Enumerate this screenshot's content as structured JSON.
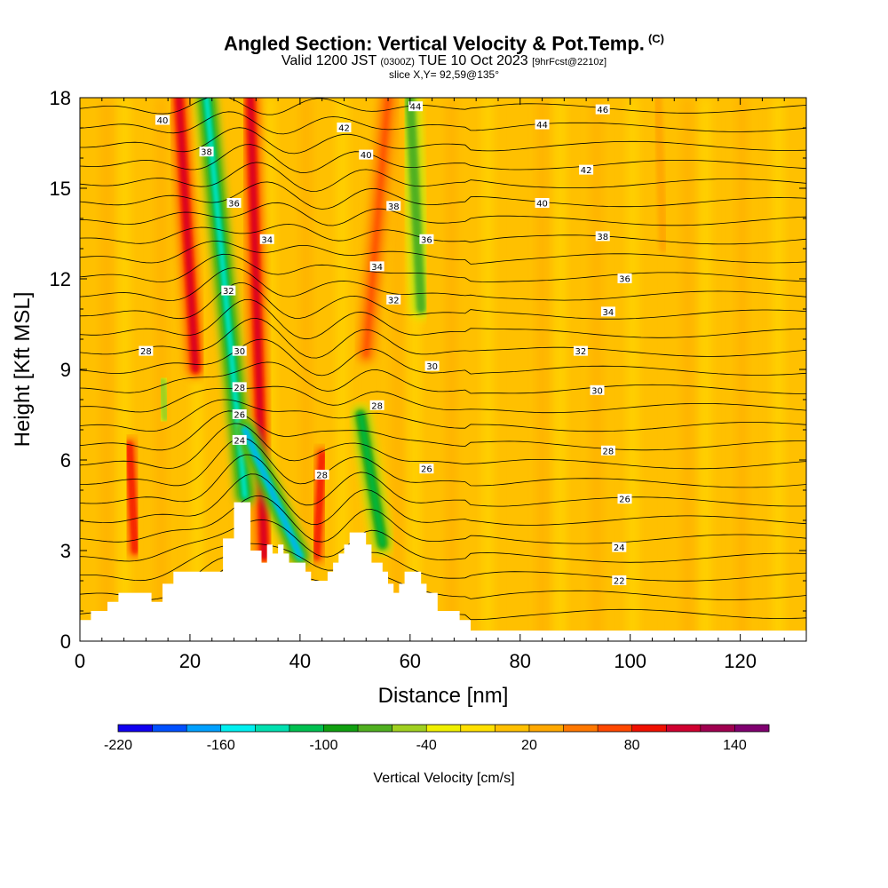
{
  "title": {
    "main": "Angled Section: Vertical Velocity & Pot.Temp.",
    "main_units": "(C)",
    "valid_prefix": "Valid 1200 JST",
    "valid_utc": "(0300Z)",
    "valid_date": "TUE 10 Oct 2023",
    "forecast": "[9hrFcst@2210z]",
    "slice": "slice X,Y= 92,59@135°"
  },
  "chart_data": {
    "type": "heatmap",
    "xlabel": "Distance [nm]",
    "ylabel": "Height [Kft MSL]",
    "xlim": [
      0,
      132
    ],
    "ylim": [
      0,
      18
    ],
    "x_ticks": [
      0,
      20,
      40,
      60,
      80,
      100,
      120
    ],
    "y_ticks": [
      0,
      3,
      6,
      9,
      12,
      15,
      18
    ],
    "colorbar": {
      "label": "Vertical Velocity [cm/s]",
      "ticks": [
        -220,
        -160,
        -100,
        -40,
        20,
        80,
        140
      ],
      "min": -220,
      "max": 160,
      "step": 20,
      "colors": [
        "#1000f0",
        "#0050ff",
        "#00a0ff",
        "#00f0f0",
        "#00e0b0",
        "#00c050",
        "#10a010",
        "#50b020",
        "#a0d020",
        "#f0f000",
        "#ffe000",
        "#ffc000",
        "#ffa800",
        "#ff7800",
        "#ff4800",
        "#f01000",
        "#d00030",
        "#a00050",
        "#800070"
      ]
    },
    "terrain": [
      [
        0,
        0.7
      ],
      [
        2,
        0.7
      ],
      [
        2,
        1
      ],
      [
        5,
        1
      ],
      [
        5,
        1.3
      ],
      [
        7,
        1.3
      ],
      [
        7,
        1.6
      ],
      [
        13,
        1.6
      ],
      [
        13,
        1.3
      ],
      [
        15,
        1.3
      ],
      [
        15,
        1.9
      ],
      [
        17,
        1.9
      ],
      [
        17,
        2.3
      ],
      [
        26,
        2.3
      ],
      [
        26,
        3.4
      ],
      [
        28,
        3.4
      ],
      [
        28,
        4.6
      ],
      [
        31,
        4.6
      ],
      [
        31,
        3
      ],
      [
        33,
        3
      ],
      [
        33,
        2.6
      ],
      [
        34,
        2.6
      ],
      [
        34,
        3.2
      ],
      [
        35,
        3.2
      ],
      [
        35,
        2.9
      ],
      [
        36,
        2.9
      ],
      [
        36,
        3.2
      ],
      [
        37,
        3.2
      ],
      [
        37,
        2.9
      ],
      [
        38,
        2.9
      ],
      [
        38,
        2.6
      ],
      [
        41,
        2.6
      ],
      [
        41,
        2.3
      ],
      [
        42,
        2.3
      ],
      [
        42,
        2
      ],
      [
        45,
        2
      ],
      [
        45,
        2.3
      ],
      [
        46,
        2.3
      ],
      [
        46,
        2.6
      ],
      [
        47,
        2.6
      ],
      [
        47,
        2.9
      ],
      [
        48,
        2.9
      ],
      [
        48,
        3.2
      ],
      [
        49,
        3.2
      ],
      [
        49,
        3.6
      ],
      [
        52,
        3.6
      ],
      [
        52,
        3.2
      ],
      [
        53,
        3.2
      ],
      [
        53,
        2.6
      ],
      [
        55,
        2.6
      ],
      [
        55,
        2.3
      ],
      [
        56,
        2.3
      ],
      [
        56,
        1.9
      ],
      [
        57,
        1.9
      ],
      [
        57,
        1.6
      ],
      [
        58,
        1.6
      ],
      [
        58,
        1.9
      ],
      [
        59,
        1.9
      ],
      [
        59,
        2.3
      ],
      [
        62,
        2.3
      ],
      [
        62,
        1.9
      ],
      [
        63,
        1.9
      ],
      [
        63,
        1.6
      ],
      [
        65,
        1.6
      ],
      [
        65,
        1
      ],
      [
        69,
        1
      ],
      [
        69,
        0.7
      ],
      [
        71,
        0.7
      ],
      [
        71,
        0.35
      ],
      [
        132,
        0.35
      ]
    ],
    "updrafts": [
      {
        "x0": 18,
        "y0": 18,
        "x1": 21,
        "y1": 9,
        "peak": 100
      },
      {
        "x0": 31,
        "y0": 18,
        "x1": 33.5,
        "y1": 2.8,
        "peak": 110
      },
      {
        "x0": 9,
        "y0": 6.5,
        "x1": 10,
        "y1": 3,
        "peak": 80
      },
      {
        "x0": 44,
        "y0": 6.2,
        "x1": 43,
        "y1": 2.8,
        "peak": 80
      },
      {
        "x0": 56,
        "y0": 18,
        "x1": 52,
        "y1": 9.5,
        "peak": 70
      },
      {
        "x0": 105,
        "y0": 18,
        "x1": 106,
        "y1": 13,
        "peak": 25
      }
    ],
    "downdrafts": [
      {
        "x0": 23,
        "y0": 18,
        "x1": 30,
        "y1": 4.8,
        "peak": -150
      },
      {
        "x0": 30,
        "y0": 7,
        "x1": 40,
        "y1": 2.8,
        "peak": -170
      },
      {
        "x0": 60,
        "y0": 18,
        "x1": 62,
        "y1": 11,
        "peak": -80
      },
      {
        "x0": 51,
        "y0": 7.5,
        "x1": 55,
        "y1": 3.2,
        "peak": -120
      },
      {
        "x0": 15,
        "y0": 8.6,
        "x1": 15.5,
        "y1": 7.4,
        "peak": -60
      }
    ],
    "pot_temp_labels": [
      {
        "text": "40",
        "x": 15,
        "y": 17.25
      },
      {
        "text": "38",
        "x": 23,
        "y": 16.2
      },
      {
        "text": "36",
        "x": 28,
        "y": 14.5
      },
      {
        "text": "34",
        "x": 34,
        "y": 13.3
      },
      {
        "text": "32",
        "x": 27,
        "y": 11.6
      },
      {
        "text": "30",
        "x": 29,
        "y": 9.6
      },
      {
        "text": "28",
        "x": 12,
        "y": 9.6
      },
      {
        "text": "28",
        "x": 29,
        "y": 8.4
      },
      {
        "text": "26",
        "x": 29,
        "y": 7.5
      },
      {
        "text": "24",
        "x": 29,
        "y": 6.65
      },
      {
        "text": "42",
        "x": 48,
        "y": 17.0
      },
      {
        "text": "40",
        "x": 52,
        "y": 16.1
      },
      {
        "text": "44",
        "x": 61,
        "y": 17.7
      },
      {
        "text": "38",
        "x": 57,
        "y": 14.4
      },
      {
        "text": "36",
        "x": 63,
        "y": 13.3
      },
      {
        "text": "34",
        "x": 54,
        "y": 12.4
      },
      {
        "text": "32",
        "x": 57,
        "y": 11.3
      },
      {
        "text": "30",
        "x": 64,
        "y": 9.1
      },
      {
        "text": "28",
        "x": 54,
        "y": 7.8
      },
      {
        "text": "28",
        "x": 44,
        "y": 5.5
      },
      {
        "text": "26",
        "x": 63,
        "y": 5.7
      },
      {
        "text": "46",
        "x": 95,
        "y": 17.6
      },
      {
        "text": "44",
        "x": 84,
        "y": 17.1
      },
      {
        "text": "42",
        "x": 92,
        "y": 15.6
      },
      {
        "text": "40",
        "x": 84,
        "y": 14.5
      },
      {
        "text": "38",
        "x": 95,
        "y": 13.4
      },
      {
        "text": "36",
        "x": 99,
        "y": 12.0
      },
      {
        "text": "34",
        "x": 96,
        "y": 10.9
      },
      {
        "text": "32",
        "x": 91,
        "y": 9.6
      },
      {
        "text": "30",
        "x": 94,
        "y": 8.3
      },
      {
        "text": "28",
        "x": 96,
        "y": 6.3
      },
      {
        "text": "26",
        "x": 99,
        "y": 4.7
      },
      {
        "text": "24",
        "x": 98,
        "y": 3.1
      },
      {
        "text": "22",
        "x": 98,
        "y": 2.0
      }
    ]
  }
}
